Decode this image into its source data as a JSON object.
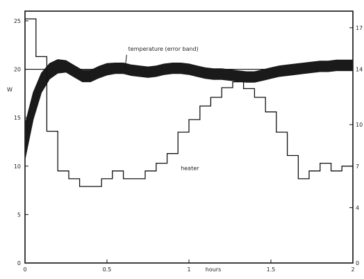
{
  "chart_data": {
    "type": "line",
    "title": "",
    "xlabel": "hours",
    "ylabel_left": "W",
    "ylabel_right": "",
    "x_ticks": [
      {
        "value": 0,
        "label": "0"
      },
      {
        "value": 0.5,
        "label": "0.5"
      },
      {
        "value": 1,
        "label": "1"
      },
      {
        "value": 1.5,
        "label": "1.5"
      },
      {
        "value": 2,
        "label": "2"
      }
    ],
    "y_left_ticks": [
      {
        "value": 0,
        "label": "0"
      },
      {
        "value": 5,
        "label": "5"
      },
      {
        "value": 10,
        "label": "10"
      },
      {
        "value": 15,
        "label": "15"
      },
      {
        "value": 20,
        "label": "20"
      },
      {
        "value": 25,
        "label": "25"
      }
    ],
    "y_right_ticks": [
      {
        "value": 0,
        "label": "0"
      },
      {
        "value": 4,
        "label": "4"
      },
      {
        "value": 7,
        "label": "7"
      },
      {
        "value": 10,
        "label": "10"
      },
      {
        "value": 14,
        "label": "14"
      },
      {
        "value": 17,
        "label": "17"
      }
    ],
    "xlim": [
      0,
      2
    ],
    "ylim_left": [
      0,
      26
    ],
    "ylim_right": [
      0,
      18.2
    ],
    "setpoint": 20,
    "grid": false,
    "series": [
      {
        "name": "temperature (error band)",
        "kind": "band",
        "axis": "left",
        "x": [
          0,
          0.05,
          0.1,
          0.15,
          0.2,
          0.25,
          0.3,
          0.35,
          0.4,
          0.45,
          0.5,
          0.55,
          0.6,
          0.65,
          0.7,
          0.75,
          0.8,
          0.85,
          0.9,
          0.95,
          1.0,
          1.05,
          1.1,
          1.15,
          1.2,
          1.25,
          1.3,
          1.35,
          1.4,
          1.45,
          1.5,
          1.55,
          1.6,
          1.65,
          1.7,
          1.75,
          1.8,
          1.85,
          1.9,
          1.95,
          2.0
        ],
        "center": [
          12.5,
          16.2,
          18.6,
          19.8,
          20.3,
          20.3,
          19.8,
          19.3,
          19.3,
          19.7,
          20.0,
          20.1,
          20.1,
          19.9,
          19.8,
          19.7,
          19.8,
          20.0,
          20.1,
          20.1,
          20.0,
          19.8,
          19.6,
          19.5,
          19.5,
          19.4,
          19.3,
          19.2,
          19.2,
          19.4,
          19.6,
          19.8,
          19.9,
          20.0,
          20.1,
          20.2,
          20.3,
          20.3,
          20.4,
          20.4,
          20.4
        ],
        "halfwidth": [
          1.8,
          1.4,
          1.0,
          0.8,
          0.7,
          0.6,
          0.6,
          0.6,
          0.6,
          0.6,
          0.6,
          0.55,
          0.55,
          0.55,
          0.55,
          0.55,
          0.55,
          0.55,
          0.55,
          0.55,
          0.55,
          0.55,
          0.55,
          0.55,
          0.55,
          0.55,
          0.55,
          0.55,
          0.55,
          0.55,
          0.55,
          0.55,
          0.55,
          0.55,
          0.55,
          0.55,
          0.55,
          0.55,
          0.55,
          0.55,
          0.55
        ]
      },
      {
        "name": "heater",
        "kind": "step",
        "axis": "left",
        "steps": [
          {
            "x0": 0.0,
            "x1": 0.067,
            "y": 25.2
          },
          {
            "x0": 0.067,
            "x1": 0.133,
            "y": 21.3
          },
          {
            "x0": 0.133,
            "x1": 0.2,
            "y": 13.6
          },
          {
            "x0": 0.2,
            "x1": 0.267,
            "y": 9.5
          },
          {
            "x0": 0.267,
            "x1": 0.333,
            "y": 8.7
          },
          {
            "x0": 0.333,
            "x1": 0.467,
            "y": 7.9
          },
          {
            "x0": 0.467,
            "x1": 0.533,
            "y": 8.7
          },
          {
            "x0": 0.533,
            "x1": 0.6,
            "y": 9.5
          },
          {
            "x0": 0.6,
            "x1": 0.733,
            "y": 8.7
          },
          {
            "x0": 0.733,
            "x1": 0.8,
            "y": 9.5
          },
          {
            "x0": 0.8,
            "x1": 0.867,
            "y": 10.3
          },
          {
            "x0": 0.867,
            "x1": 0.933,
            "y": 11.3
          },
          {
            "x0": 0.933,
            "x1": 1.0,
            "y": 13.5
          },
          {
            "x0": 1.0,
            "x1": 1.067,
            "y": 14.8
          },
          {
            "x0": 1.067,
            "x1": 1.133,
            "y": 16.2
          },
          {
            "x0": 1.133,
            "x1": 1.2,
            "y": 17.1
          },
          {
            "x0": 1.2,
            "x1": 1.267,
            "y": 18.1
          },
          {
            "x0": 1.267,
            "x1": 1.333,
            "y": 18.7
          },
          {
            "x0": 1.333,
            "x1": 1.4,
            "y": 18.0
          },
          {
            "x0": 1.4,
            "x1": 1.467,
            "y": 17.1
          },
          {
            "x0": 1.467,
            "x1": 1.533,
            "y": 15.6
          },
          {
            "x0": 1.533,
            "x1": 1.6,
            "y": 13.5
          },
          {
            "x0": 1.6,
            "x1": 1.667,
            "y": 11.1
          },
          {
            "x0": 1.667,
            "x1": 1.733,
            "y": 8.7
          },
          {
            "x0": 1.733,
            "x1": 1.8,
            "y": 9.5
          },
          {
            "x0": 1.8,
            "x1": 1.867,
            "y": 10.3
          },
          {
            "x0": 1.867,
            "x1": 1.933,
            "y": 9.5
          },
          {
            "x0": 1.933,
            "x1": 2.0,
            "y": 10.0
          }
        ]
      }
    ],
    "annotations": [
      {
        "text": "temperature (error band)",
        "series": "temperature (error band)"
      },
      {
        "text": "heater",
        "series": "heater"
      }
    ],
    "colors": {
      "line": "#111111",
      "band": "#1a1a1a",
      "axis": "#111111"
    }
  }
}
